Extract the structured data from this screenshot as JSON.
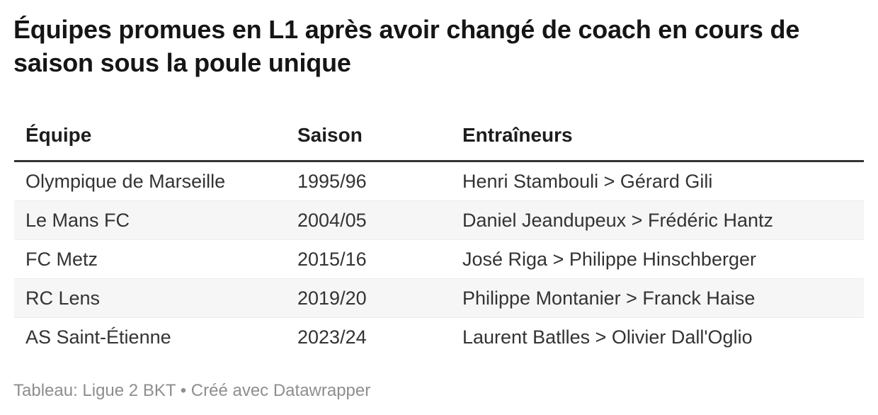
{
  "title": "Équipes promues en L1 après avoir changé de coach en cours de saison sous la poule unique",
  "footer": {
    "text": "Tableau: Ligue 2 BKT • Créé avec Datawrapper"
  },
  "colors": {
    "title_text": "#151515",
    "body_text": "#333333",
    "header_rule": "#333333",
    "row_stripe": "#f6f6f6",
    "row_border": "#ececec",
    "footer_text": "#8e8e8e"
  },
  "chart_data": {
    "type": "table",
    "title": "Équipes promues en L1 après avoir changé de coach en cours de saison sous la poule unique",
    "columns": [
      "Équipe",
      "Saison",
      "Entraîneurs"
    ],
    "rows": [
      [
        "Olympique de Marseille",
        "1995/96",
        "Henri Stambouli > Gérard Gili"
      ],
      [
        "Le Mans FC",
        "2004/05",
        "Daniel Jeandupeux > Frédéric Hantz"
      ],
      [
        "FC Metz",
        "2015/16",
        "José Riga > Philippe Hinschberger"
      ],
      [
        "RC Lens",
        "2019/20",
        "Philippe Montanier > Franck Haise"
      ],
      [
        "AS Saint-Étienne",
        "2023/24",
        "Laurent Batlles > Olivier Dall'Oglio"
      ]
    ],
    "layout_hints": {
      "striped_rows": "even",
      "header_rule": true,
      "grid": false
    }
  }
}
